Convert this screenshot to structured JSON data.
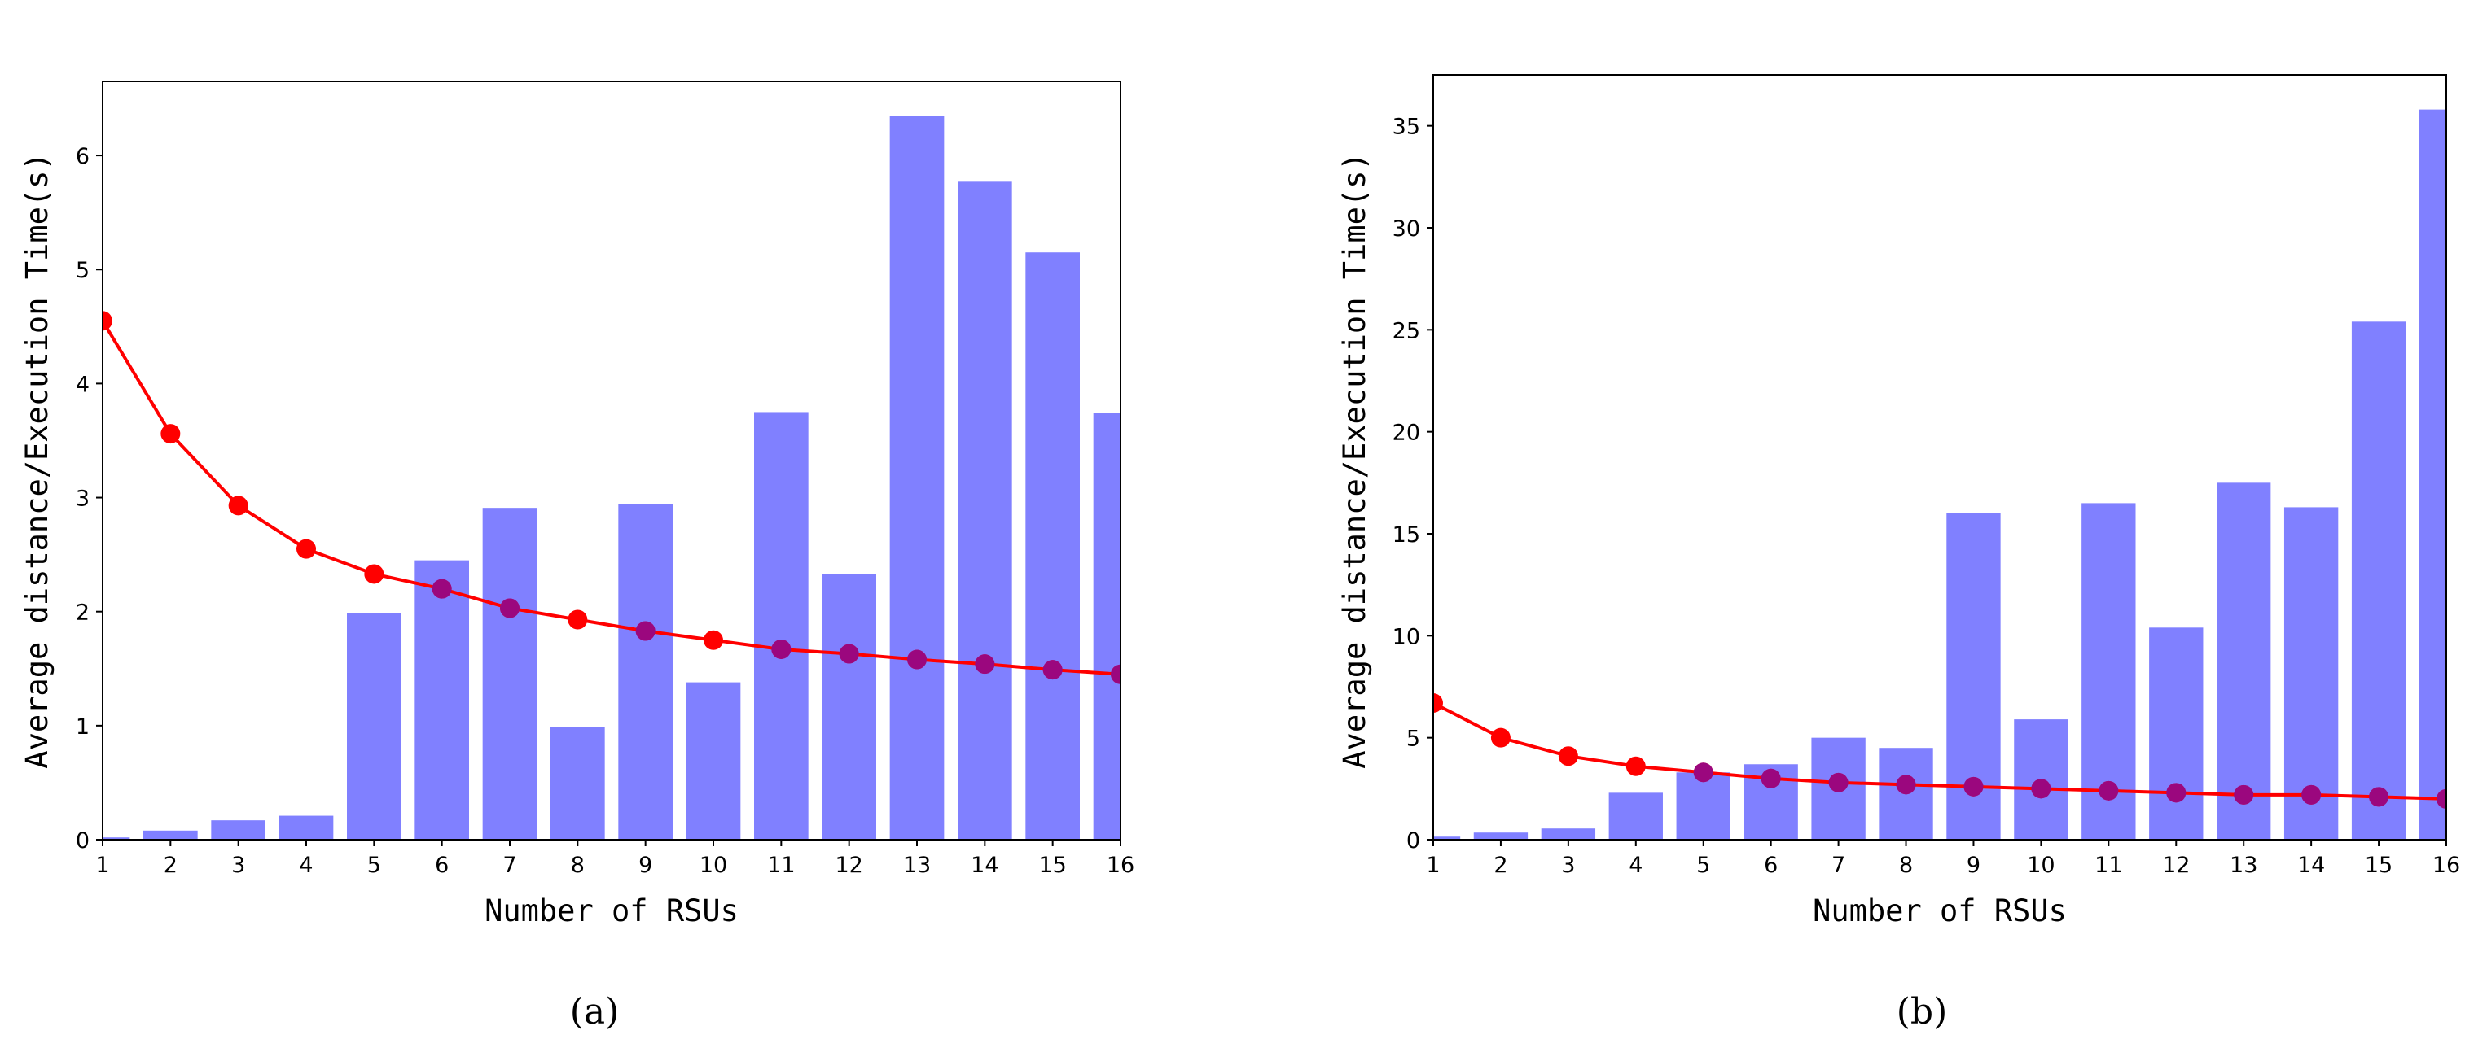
{
  "chart_data": [
    {
      "type": "bar",
      "caption": "(a)",
      "xlabel": "Number of RSUs",
      "ylabel": "Average distance/Execution Time(s)",
      "categories": [
        "1",
        "2",
        "3",
        "4",
        "5",
        "6",
        "7",
        "8",
        "9",
        "10",
        "11",
        "12",
        "13",
        "14",
        "15",
        "16"
      ],
      "ylim": [
        0,
        6.65
      ],
      "yticks": [
        0,
        1,
        2,
        3,
        4,
        5,
        6
      ],
      "series": [
        {
          "name": "execution time",
          "kind": "bar",
          "color": "#8080ff",
          "values": [
            0.02,
            0.08,
            0.17,
            0.21,
            1.99,
            2.45,
            2.91,
            0.99,
            2.94,
            1.38,
            3.75,
            2.33,
            6.35,
            5.77,
            5.15,
            3.74
          ]
        },
        {
          "name": "average distance",
          "kind": "line",
          "color": "#ff0000",
          "values": [
            4.55,
            3.56,
            2.93,
            2.55,
            2.33,
            2.2,
            2.03,
            1.93,
            1.83,
            1.75,
            1.67,
            1.63,
            1.58,
            1.54,
            1.49,
            1.45
          ]
        }
      ]
    },
    {
      "type": "bar",
      "caption": "(b)",
      "xlabel": "Number of RSUs",
      "ylabel": "Average distance/Execution Time(s)",
      "categories": [
        "1",
        "2",
        "3",
        "4",
        "5",
        "6",
        "7",
        "8",
        "9",
        "10",
        "11",
        "12",
        "13",
        "14",
        "15",
        "16"
      ],
      "ylim": [
        0,
        37.5
      ],
      "yticks": [
        0,
        5,
        10,
        15,
        20,
        25,
        30,
        35
      ],
      "series": [
        {
          "name": "execution time",
          "kind": "bar",
          "color": "#8080ff",
          "values": [
            0.15,
            0.35,
            0.55,
            2.3,
            3.3,
            3.7,
            5.0,
            4.5,
            16.0,
            5.9,
            16.5,
            10.4,
            17.5,
            16.3,
            25.4,
            35.8
          ]
        },
        {
          "name": "average distance",
          "kind": "line",
          "color": "#ff0000",
          "values": [
            6.7,
            5.0,
            4.1,
            3.6,
            3.3,
            3.0,
            2.8,
            2.7,
            2.6,
            2.5,
            2.4,
            2.3,
            2.2,
            2.2,
            2.1,
            2.0
          ]
        }
      ]
    }
  ]
}
